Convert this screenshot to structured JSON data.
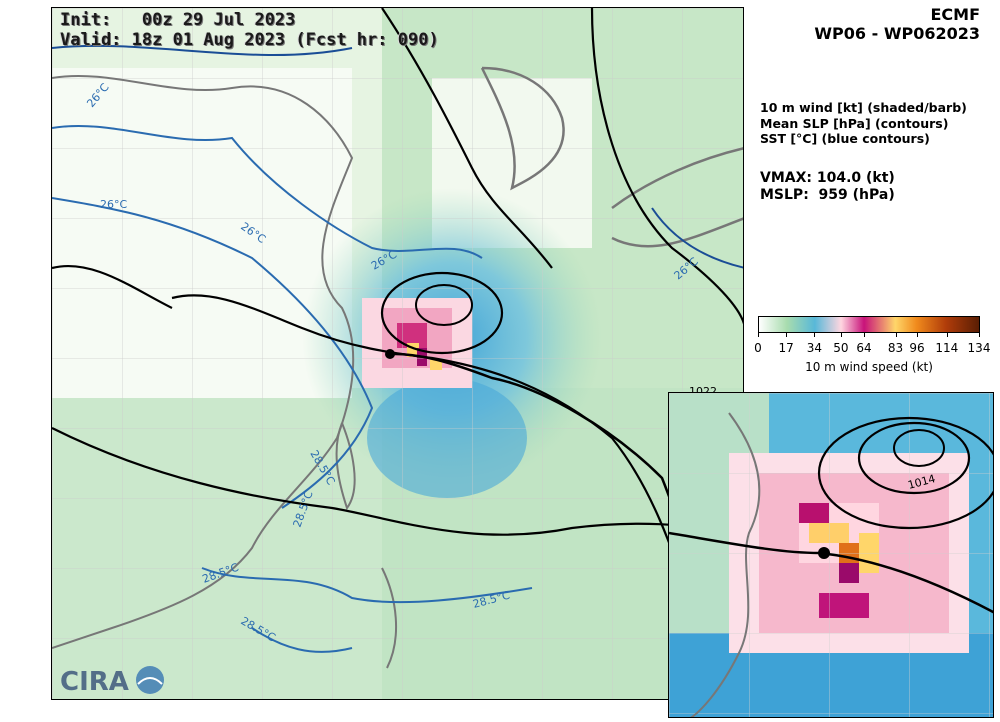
{
  "header": {
    "init_line": "Init:   00z 29 Jul 2023",
    "valid_line": "Valid: 18z 01 Aug 2023 (Fcst hr: 090)",
    "model": "ECMF",
    "storm_id": "WP06 - WP062023"
  },
  "description": {
    "line1": "10 m wind [kt] (shaded/barb)",
    "line2": "Mean SLP [hPa] (contours)",
    "line3": "SST [°C] (blue contours)"
  },
  "stats": {
    "vmax": "VMAX: 104.0 (kt)",
    "mslp": "MSLP:  959 (hPa)"
  },
  "colorbar": {
    "label": "10 m wind speed (kt)",
    "ticks": [
      "0",
      "17",
      "34",
      "50",
      "64",
      "83",
      "96",
      "114",
      "134"
    ],
    "tick_values": [
      0,
      17,
      34,
      50,
      64,
      83,
      96,
      114,
      134
    ],
    "max": 134,
    "colors": [
      "#ffffff",
      "#a8dcae",
      "#58b8d8",
      "#ffd6e0",
      "#c8137a",
      "#ffd66a",
      "#f08a1c",
      "#b03c0a",
      "#5a1e04"
    ]
  },
  "map_labels": {
    "sst_26_a": "26°C",
    "sst_26_b": "26°C",
    "sst_26_c": "26°C",
    "sst_26_d": "26°C",
    "sst_26_e": "26°C",
    "sst_285_a": "28.5°C",
    "sst_285_b": "28.5°C",
    "sst_285_c": "28.5°C",
    "sst_285_d": "28.5°C",
    "sst_285_e": "28.5°C",
    "slp_1022": "1022",
    "slp_1014": "1014"
  },
  "logo": {
    "text": "CIRA"
  }
}
